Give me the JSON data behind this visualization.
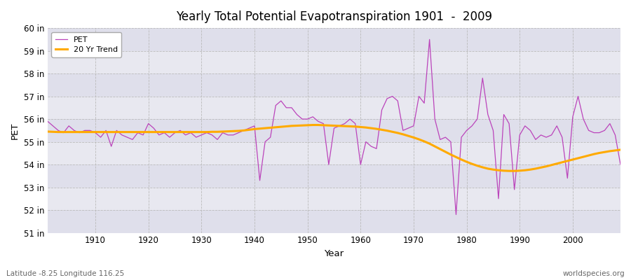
{
  "title": "Yearly Total Potential Evapotranspiration 1901  -  2009",
  "xlabel": "Year",
  "ylabel": "PET",
  "subtitle_left": "Latitude -8.25 Longitude 116.25",
  "subtitle_right": "worldspecies.org",
  "legend_pet": "PET",
  "legend_trend": "20 Yr Trend",
  "pet_color": "#bb44bb",
  "trend_color": "#ffaa00",
  "bg_color": "#e8e8f0",
  "grid_color": "#bbbbbb",
  "ylim": [
    51,
    60
  ],
  "yticks": [
    51,
    52,
    53,
    54,
    55,
    56,
    57,
    58,
    59,
    60
  ],
  "ytick_labels": [
    "51 in",
    "52 in",
    "53 in",
    "54 in",
    "55 in",
    "56 in",
    "57 in",
    "58 in",
    "59 in",
    "60 in"
  ],
  "years": [
    1901,
    1902,
    1903,
    1904,
    1905,
    1906,
    1907,
    1908,
    1909,
    1910,
    1911,
    1912,
    1913,
    1914,
    1915,
    1916,
    1917,
    1918,
    1919,
    1920,
    1921,
    1922,
    1923,
    1924,
    1925,
    1926,
    1927,
    1928,
    1929,
    1930,
    1931,
    1932,
    1933,
    1934,
    1935,
    1936,
    1937,
    1938,
    1939,
    1940,
    1941,
    1942,
    1943,
    1944,
    1945,
    1946,
    1947,
    1948,
    1949,
    1950,
    1951,
    1952,
    1953,
    1954,
    1955,
    1956,
    1957,
    1958,
    1959,
    1960,
    1961,
    1962,
    1963,
    1964,
    1965,
    1966,
    1967,
    1968,
    1969,
    1970,
    1971,
    1972,
    1973,
    1974,
    1975,
    1976,
    1977,
    1978,
    1979,
    1980,
    1981,
    1982,
    1983,
    1984,
    1985,
    1986,
    1987,
    1988,
    1989,
    1990,
    1991,
    1992,
    1993,
    1994,
    1995,
    1996,
    1997,
    1998,
    1999,
    2000,
    2001,
    2002,
    2003,
    2004,
    2005,
    2006,
    2007,
    2008,
    2009
  ],
  "pet_values": [
    55.9,
    55.7,
    55.5,
    55.4,
    55.7,
    55.5,
    55.4,
    55.5,
    55.5,
    55.4,
    55.2,
    55.5,
    54.8,
    55.5,
    55.3,
    55.2,
    55.1,
    55.4,
    55.3,
    55.8,
    55.6,
    55.3,
    55.4,
    55.2,
    55.4,
    55.5,
    55.3,
    55.4,
    55.2,
    55.3,
    55.4,
    55.3,
    55.1,
    55.4,
    55.3,
    55.3,
    55.4,
    55.5,
    55.6,
    55.7,
    53.3,
    55.0,
    55.2,
    56.6,
    56.8,
    56.5,
    56.5,
    56.2,
    56.0,
    56.0,
    56.1,
    55.9,
    55.8,
    54.0,
    55.6,
    55.7,
    55.8,
    56.0,
    55.8,
    54.0,
    55.0,
    54.8,
    54.7,
    56.4,
    56.9,
    57.0,
    56.8,
    55.5,
    55.6,
    55.7,
    57.0,
    56.7,
    59.5,
    56.0,
    55.1,
    55.2,
    55.0,
    51.8,
    55.2,
    55.5,
    55.7,
    56.0,
    57.8,
    56.2,
    55.5,
    52.5,
    56.2,
    55.8,
    52.9,
    55.3,
    55.7,
    55.5,
    55.1,
    55.3,
    55.2,
    55.3,
    55.7,
    55.2,
    53.4,
    56.1,
    57.0,
    56.0,
    55.5,
    55.4,
    55.4,
    55.5,
    55.8,
    55.3,
    54.0
  ],
  "trend_values": [
    55.45,
    55.44,
    55.43,
    55.43,
    55.43,
    55.43,
    55.43,
    55.43,
    55.43,
    55.43,
    55.43,
    55.43,
    55.43,
    55.43,
    55.43,
    55.43,
    55.43,
    55.43,
    55.43,
    55.43,
    55.43,
    55.43,
    55.43,
    55.43,
    55.43,
    55.43,
    55.43,
    55.43,
    55.43,
    55.43,
    55.43,
    55.44,
    55.44,
    55.45,
    55.46,
    55.47,
    55.48,
    55.5,
    55.53,
    55.56,
    55.58,
    55.6,
    55.62,
    55.64,
    55.66,
    55.68,
    55.7,
    55.71,
    55.72,
    55.73,
    55.74,
    55.74,
    55.73,
    55.72,
    55.71,
    55.7,
    55.69,
    55.68,
    55.67,
    55.65,
    55.63,
    55.6,
    55.57,
    55.53,
    55.49,
    55.44,
    55.39,
    55.33,
    55.26,
    55.19,
    55.11,
    55.02,
    54.92,
    54.8,
    54.68,
    54.56,
    54.44,
    54.33,
    54.22,
    54.12,
    54.03,
    53.95,
    53.88,
    53.82,
    53.78,
    53.75,
    53.73,
    53.72,
    53.72,
    53.73,
    53.75,
    53.78,
    53.82,
    53.87,
    53.92,
    53.98,
    54.04,
    54.1,
    54.16,
    54.22,
    54.28,
    54.34,
    54.4,
    54.46,
    54.51,
    54.55,
    54.59,
    54.62,
    54.65
  ]
}
